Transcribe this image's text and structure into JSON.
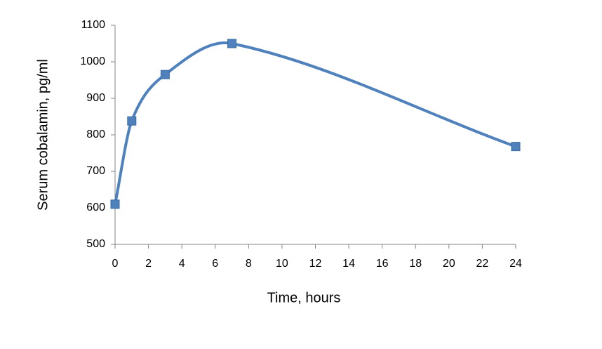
{
  "chart_data": {
    "type": "line",
    "title": null,
    "x_label": "Time, hours",
    "y_label": "Serum cobalamin, pg/ml",
    "x": [
      0,
      1,
      3,
      7,
      24
    ],
    "series": [
      {
        "name": "Serum cobalamin",
        "color": "#4f81bd",
        "values": [
          610,
          838,
          965,
          1050,
          768
        ]
      }
    ],
    "xlim": [
      0,
      24
    ],
    "xticks": [
      0,
      2,
      4,
      6,
      8,
      10,
      12,
      14,
      16,
      18,
      20,
      22,
      24
    ],
    "ylim": [
      500,
      1100
    ],
    "yticks": [
      500,
      600,
      700,
      800,
      900,
      1000,
      1100
    ],
    "smooth": true,
    "marker": "square",
    "grid": false,
    "legend": false
  }
}
